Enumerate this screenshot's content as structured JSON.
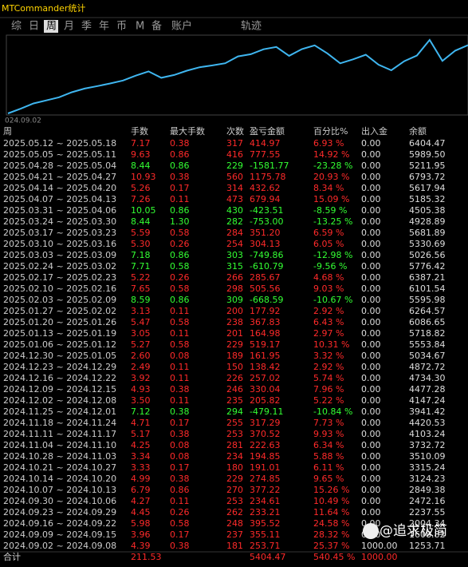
{
  "header": {
    "title": "MTCommander统计"
  },
  "tabs": [
    "综",
    "日",
    "周",
    "月",
    "季",
    "年",
    "币",
    "M",
    "备",
    "账户",
    "轨迹"
  ],
  "active_tab": 2,
  "curve": {
    "x_label": "024.09.02"
  },
  "table": {
    "columns": [
      "周",
      "手数",
      "最大手数",
      "次数",
      "盈亏金额",
      "百分比%",
      "出入金",
      "余额"
    ],
    "rows": [
      [
        "2025.05.12 ~ 2025.05.18",
        "7.17",
        "0.38",
        "317",
        "414.97",
        "6.93 %",
        "0.00",
        "6404.47"
      ],
      [
        "2025.05.05 ~ 2025.05.11",
        "9.63",
        "0.86",
        "416",
        "777.55",
        "14.92 %",
        "0.00",
        "5989.50"
      ],
      [
        "2025.04.28 ~ 2025.05.04",
        "8.44",
        "0.86",
        "229",
        "-1581.77",
        "-23.28 %",
        "0.00",
        "5211.95"
      ],
      [
        "2025.04.21 ~ 2025.04.27",
        "10.93",
        "0.38",
        "560",
        "1175.78",
        "20.93 %",
        "0.00",
        "6793.72"
      ],
      [
        "2025.04.14 ~ 2025.04.20",
        "5.26",
        "0.17",
        "314",
        "432.62",
        "8.34 %",
        "0.00",
        "5617.94"
      ],
      [
        "2025.04.07 ~ 2025.04.13",
        "7.26",
        "0.11",
        "473",
        "679.94",
        "15.09 %",
        "0.00",
        "5185.32"
      ],
      [
        "2025.03.31 ~ 2025.04.06",
        "10.05",
        "0.86",
        "430",
        "-423.51",
        "-8.59 %",
        "0.00",
        "4505.38"
      ],
      [
        "2025.03.24 ~ 2025.03.30",
        "8.44",
        "1.30",
        "282",
        "-753.00",
        "-13.25 %",
        "0.00",
        "4928.89"
      ],
      [
        "2025.03.17 ~ 2025.03.23",
        "5.59",
        "0.58",
        "284",
        "351.20",
        "6.59 %",
        "0.00",
        "5681.89"
      ],
      [
        "2025.03.10 ~ 2025.03.16",
        "5.30",
        "0.26",
        "254",
        "304.13",
        "6.05 %",
        "0.00",
        "5330.69"
      ],
      [
        "2025.03.03 ~ 2025.03.09",
        "7.18",
        "0.86",
        "303",
        "-749.86",
        "-12.98 %",
        "0.00",
        "5026.56"
      ],
      [
        "2025.02.24 ~ 2025.03.02",
        "7.71",
        "0.58",
        "315",
        "-610.79",
        "-9.56 %",
        "0.00",
        "5776.42"
      ],
      [
        "2025.02.17 ~ 2025.02.23",
        "5.22",
        "0.26",
        "266",
        "285.67",
        "4.68 %",
        "0.00",
        "6387.21"
      ],
      [
        "2025.02.10 ~ 2025.02.16",
        "7.65",
        "0.58",
        "298",
        "505.56",
        "9.03 %",
        "0.00",
        "6101.54"
      ],
      [
        "2025.02.03 ~ 2025.02.09",
        "8.59",
        "0.86",
        "309",
        "-668.59",
        "-10.67 %",
        "0.00",
        "5595.98"
      ],
      [
        "2025.01.27 ~ 2025.02.02",
        "3.13",
        "0.11",
        "200",
        "177.92",
        "2.92 %",
        "0.00",
        "6264.57"
      ],
      [
        "2025.01.20 ~ 2025.01.26",
        "5.47",
        "0.58",
        "238",
        "367.83",
        "6.43 %",
        "0.00",
        "6086.65"
      ],
      [
        "2025.01.13 ~ 2025.01.19",
        "3.05",
        "0.11",
        "201",
        "164.98",
        "2.97 %",
        "0.00",
        "5718.82"
      ],
      [
        "2025.01.06 ~ 2025.01.12",
        "5.27",
        "0.58",
        "229",
        "519.17",
        "10.31 %",
        "0.00",
        "5553.84"
      ],
      [
        "2024.12.30 ~ 2025.01.05",
        "2.60",
        "0.08",
        "189",
        "161.95",
        "3.32 %",
        "0.00",
        "5034.67"
      ],
      [
        "2024.12.23 ~ 2024.12.29",
        "2.49",
        "0.11",
        "150",
        "138.42",
        "2.92 %",
        "0.00",
        "4872.72"
      ],
      [
        "2024.12.16 ~ 2024.12.22",
        "3.92",
        "0.11",
        "226",
        "257.02",
        "5.74 %",
        "0.00",
        "4734.30"
      ],
      [
        "2024.12.09 ~ 2024.12.15",
        "4.93",
        "0.38",
        "246",
        "330.04",
        "7.96 %",
        "0.00",
        "4477.28"
      ],
      [
        "2024.12.02 ~ 2024.12.08",
        "3.50",
        "0.11",
        "235",
        "205.82",
        "5.22 %",
        "0.00",
        "4147.24"
      ],
      [
        "2024.11.25 ~ 2024.12.01",
        "7.12",
        "0.38",
        "294",
        "-479.11",
        "-10.84 %",
        "0.00",
        "3941.42"
      ],
      [
        "2024.11.18 ~ 2024.11.24",
        "4.71",
        "0.17",
        "255",
        "317.29",
        "7.73 %",
        "0.00",
        "4420.53"
      ],
      [
        "2024.11.11 ~ 2024.11.17",
        "5.17",
        "0.38",
        "253",
        "370.52",
        "9.93 %",
        "0.00",
        "4103.24"
      ],
      [
        "2024.11.04 ~ 2024.11.10",
        "4.25",
        "0.08",
        "281",
        "222.63",
        "6.34 %",
        "0.00",
        "3732.72"
      ],
      [
        "2024.10.28 ~ 2024.11.03",
        "3.34",
        "0.08",
        "234",
        "194.85",
        "5.88 %",
        "0.00",
        "3510.09"
      ],
      [
        "2024.10.21 ~ 2024.10.27",
        "3.33",
        "0.17",
        "180",
        "191.01",
        "6.11 %",
        "0.00",
        "3315.24"
      ],
      [
        "2024.10.14 ~ 2024.10.20",
        "4.99",
        "0.38",
        "229",
        "274.85",
        "9.65 %",
        "0.00",
        "3124.23"
      ],
      [
        "2024.10.07 ~ 2024.10.13",
        "6.79",
        "0.86",
        "270",
        "377.22",
        "15.26 %",
        "0.00",
        "2849.38"
      ],
      [
        "2024.09.30 ~ 2024.10.06",
        "4.27",
        "0.11",
        "253",
        "234.61",
        "10.49 %",
        "0.00",
        "2472.16"
      ],
      [
        "2024.09.23 ~ 2024.09.29",
        "4.45",
        "0.26",
        "262",
        "233.21",
        "11.64 %",
        "0.00",
        "2237.55"
      ],
      [
        "2024.09.16 ~ 2024.09.22",
        "5.98",
        "0.58",
        "248",
        "395.52",
        "24.58 %",
        "0.00",
        "2004.34"
      ],
      [
        "2024.09.09 ~ 2024.09.15",
        "3.96",
        "0.17",
        "237",
        "355.11",
        "28.32 %",
        "0.00",
        "1608.82"
      ],
      [
        "2024.09.02 ~ 2024.09.08",
        "4.39",
        "0.38",
        "181",
        "253.71",
        "25.37 %",
        "1000.00",
        "1253.71"
      ]
    ],
    "total": {
      "label": "合计",
      "lots": "211.53",
      "pnl": "5404.47",
      "pct": "540.45 %",
      "inout": "1000.00"
    }
  },
  "watermark": "@追求极简"
}
